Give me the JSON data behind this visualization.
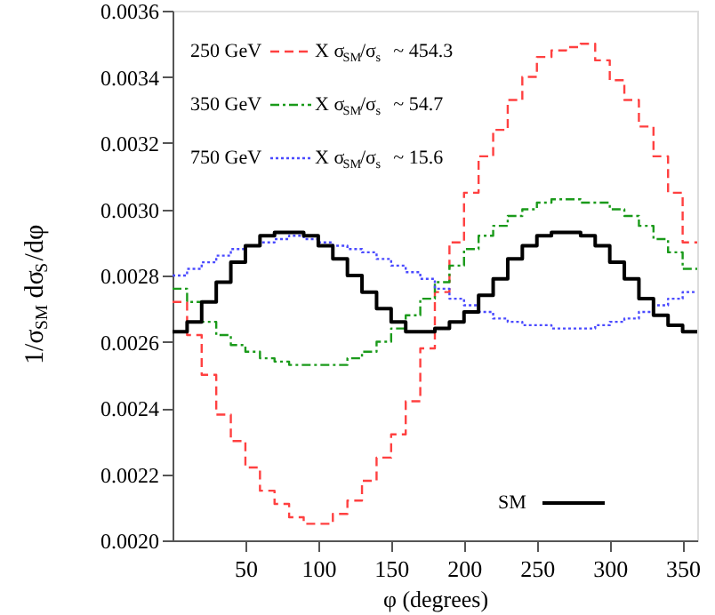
{
  "chart_data": {
    "type": "histogram",
    "xlabel": "φ   (degrees)",
    "ylabel": "1/σ$_{SM}$ dσ$_{S}$/dφ",
    "bins": [
      0,
      10,
      20,
      30,
      40,
      50,
      60,
      70,
      80,
      90,
      100,
      110,
      120,
      130,
      140,
      150,
      160,
      170,
      180,
      190,
      200,
      210,
      220,
      230,
      240,
      250,
      260,
      270,
      280,
      290,
      300,
      310,
      320,
      330,
      340,
      350,
      360
    ],
    "series": [
      {
        "name": "250 GeV",
        "color": "#ff4040",
        "line_style": "dashed",
        "values": [
          0.00272,
          0.00262,
          0.0025,
          0.00238,
          0.0023,
          0.00222,
          0.00215,
          0.00211,
          0.00207,
          0.00205,
          0.00205,
          0.00208,
          0.00212,
          0.00218,
          0.00225,
          0.00232,
          0.00242,
          0.00258,
          0.00275,
          0.0029,
          0.00305,
          0.00316,
          0.00324,
          0.00333,
          0.0034,
          0.00346,
          0.00348,
          0.00349,
          0.0035,
          0.00345,
          0.00339,
          0.00333,
          0.00325,
          0.00316,
          0.00305,
          0.0029
        ]
      },
      {
        "name": "350 GeV",
        "color": "#1a9a1a",
        "line_style": "dashdot",
        "values": [
          0.00276,
          0.00272,
          0.00266,
          0.00262,
          0.00259,
          0.00257,
          0.00255,
          0.00254,
          0.00253,
          0.00253,
          0.00253,
          0.00253,
          0.00255,
          0.00257,
          0.0026,
          0.00264,
          0.00268,
          0.00273,
          0.00278,
          0.00283,
          0.00288,
          0.00292,
          0.00295,
          0.00298,
          0.003,
          0.00302,
          0.00303,
          0.00303,
          0.00302,
          0.00302,
          0.003,
          0.00298,
          0.00295,
          0.00291,
          0.00287,
          0.00282
        ]
      },
      {
        "name": "750 GeV",
        "color": "#4a4aff",
        "line_style": "dotted",
        "values": [
          0.0028,
          0.00282,
          0.00284,
          0.00286,
          0.00288,
          0.00289,
          0.0029,
          0.00291,
          0.00292,
          0.00291,
          0.0029,
          0.00289,
          0.00288,
          0.00287,
          0.00285,
          0.00283,
          0.00281,
          0.00279,
          0.00276,
          0.00273,
          0.00271,
          0.00269,
          0.00267,
          0.00266,
          0.00265,
          0.00265,
          0.00264,
          0.00264,
          0.00264,
          0.00265,
          0.00266,
          0.00267,
          0.00269,
          0.00271,
          0.00273,
          0.00275
        ]
      },
      {
        "name": "SM",
        "color": "#000000",
        "line_style": "solid",
        "values": [
          0.00263,
          0.00266,
          0.00272,
          0.00278,
          0.00284,
          0.00289,
          0.00292,
          0.00293,
          0.00293,
          0.00292,
          0.00289,
          0.00285,
          0.0028,
          0.00275,
          0.0027,
          0.00266,
          0.00263,
          0.00263,
          0.00264,
          0.00266,
          0.00269,
          0.00274,
          0.00279,
          0.00285,
          0.00289,
          0.00292,
          0.00293,
          0.00293,
          0.00292,
          0.00289,
          0.00284,
          0.00279,
          0.00273,
          0.00268,
          0.00265,
          0.00263
        ]
      }
    ],
    "annotations": [
      "X σ$_{SM}$/σ$_{s}$  ~  454.3",
      "X σ$_{SM}$/σ$_{s}$  ~  54.7",
      "X σ$_{SM}$/σ$_{s}$  ~  15.6"
    ],
    "xlim": [
      0,
      360
    ],
    "xticks": [
      50,
      100,
      150,
      200,
      250,
      300,
      350
    ],
    "ylim": [
      0.002,
      0.0036
    ],
    "yticks": [
      {
        "value": 0.002,
        "label": "0.0020"
      },
      {
        "value": 0.0022,
        "label": "0.0022"
      },
      {
        "value": 0.0024,
        "label": "0.0024"
      },
      {
        "value": 0.0026,
        "label": "0.0026"
      },
      {
        "value": 0.0028,
        "label": "0.0028"
      },
      {
        "value": 0.003,
        "label": "0.0030"
      },
      {
        "value": 0.0032,
        "label": "0.0032"
      },
      {
        "value": 0.0034,
        "label": "0.0034"
      },
      {
        "value": 0.0036,
        "label": "0.0036"
      }
    ],
    "grid": false,
    "legend": "top left"
  }
}
